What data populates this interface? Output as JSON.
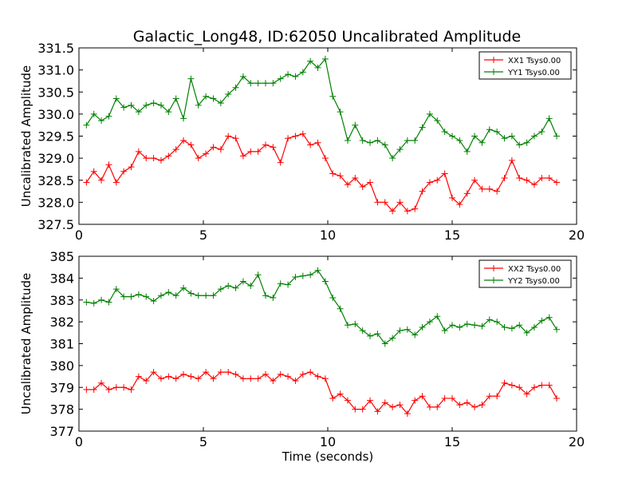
{
  "chart_data": [
    {
      "type": "line",
      "title": "Galactic_Long48, ID:62050 Uncalibrated Amplitude",
      "xlabel": "",
      "ylabel": "Uncalibrated Amplitude",
      "xlim": [
        0,
        20
      ],
      "ylim": [
        327.5,
        331.5
      ],
      "xticks": [
        "0",
        "5",
        "10",
        "15",
        "20"
      ],
      "yticks": [
        "327.5",
        "328.0",
        "328.5",
        "329.0",
        "329.5",
        "330.0",
        "330.5",
        "331.0",
        "331.5"
      ],
      "grid": false,
      "legend_position": "top-right",
      "x": [
        0.3,
        0.6,
        0.9,
        1.2,
        1.5,
        1.8,
        2.1,
        2.4,
        2.7,
        3.0,
        3.3,
        3.6,
        3.9,
        4.2,
        4.5,
        4.8,
        5.1,
        5.4,
        5.7,
        6.0,
        6.3,
        6.6,
        6.9,
        7.2,
        7.5,
        7.8,
        8.1,
        8.4,
        8.7,
        9.0,
        9.3,
        9.6,
        9.9,
        10.2,
        10.5,
        10.8,
        11.1,
        11.4,
        11.7,
        12.0,
        12.3,
        12.6,
        12.9,
        13.2,
        13.5,
        13.8,
        14.1,
        14.4,
        14.7,
        15.0,
        15.3,
        15.6,
        15.9,
        16.2,
        16.5,
        16.8,
        17.1,
        17.4,
        17.7,
        18.0,
        18.3,
        18.6,
        18.9,
        19.2
      ],
      "series": [
        {
          "name": "XX1 Tsys0.00",
          "color": "#ff0000",
          "values": [
            328.45,
            328.7,
            328.5,
            328.85,
            328.45,
            328.7,
            328.8,
            329.15,
            329.0,
            329.0,
            328.95,
            329.05,
            329.2,
            329.4,
            329.3,
            329.0,
            329.1,
            329.25,
            329.2,
            329.5,
            329.45,
            329.05,
            329.15,
            329.15,
            329.3,
            329.25,
            328.9,
            329.45,
            329.5,
            329.55,
            329.3,
            329.35,
            329.0,
            328.65,
            328.6,
            328.4,
            328.55,
            328.35,
            328.45,
            328.0,
            328.0,
            327.8,
            328.0,
            327.8,
            327.85,
            328.25,
            328.45,
            328.5,
            328.65,
            328.1,
            327.95,
            328.2,
            328.5,
            328.3,
            328.3,
            328.25,
            328.55,
            328.95,
            328.55,
            328.5,
            328.4,
            328.55,
            328.55,
            328.45
          ]
        },
        {
          "name": "YY1 Tsys0.00",
          "color": "#008000",
          "values": [
            329.75,
            330.0,
            329.85,
            329.95,
            330.35,
            330.15,
            330.2,
            330.05,
            330.2,
            330.25,
            330.2,
            330.05,
            330.35,
            329.9,
            330.8,
            330.2,
            330.4,
            330.35,
            330.25,
            330.45,
            330.6,
            330.85,
            330.7,
            330.7,
            330.7,
            330.7,
            330.8,
            330.9,
            330.85,
            330.95,
            331.2,
            331.05,
            331.25,
            330.4,
            330.05,
            329.4,
            329.75,
            329.4,
            329.35,
            329.4,
            329.3,
            329.0,
            329.2,
            329.4,
            329.4,
            329.7,
            330.0,
            329.85,
            329.6,
            329.5,
            329.4,
            329.15,
            329.5,
            329.35,
            329.65,
            329.6,
            329.45,
            329.5,
            329.3,
            329.35,
            329.5,
            329.6,
            329.9,
            329.5
          ]
        }
      ]
    },
    {
      "type": "line",
      "title": "",
      "xlabel": "Time (seconds)",
      "ylabel": "Uncalibrated Amplitude",
      "xlim": [
        0,
        20
      ],
      "ylim": [
        377,
        385
      ],
      "xticks": [
        "0",
        "5",
        "10",
        "15",
        "20"
      ],
      "yticks": [
        "377",
        "378",
        "379",
        "380",
        "381",
        "382",
        "383",
        "384",
        "385"
      ],
      "grid": false,
      "legend_position": "top-right",
      "x": [
        0.3,
        0.6,
        0.9,
        1.2,
        1.5,
        1.8,
        2.1,
        2.4,
        2.7,
        3.0,
        3.3,
        3.6,
        3.9,
        4.2,
        4.5,
        4.8,
        5.1,
        5.4,
        5.7,
        6.0,
        6.3,
        6.6,
        6.9,
        7.2,
        7.5,
        7.8,
        8.1,
        8.4,
        8.7,
        9.0,
        9.3,
        9.6,
        9.9,
        10.2,
        10.5,
        10.8,
        11.1,
        11.4,
        11.7,
        12.0,
        12.3,
        12.6,
        12.9,
        13.2,
        13.5,
        13.8,
        14.1,
        14.4,
        14.7,
        15.0,
        15.3,
        15.6,
        15.9,
        16.2,
        16.5,
        16.8,
        17.1,
        17.4,
        17.7,
        18.0,
        18.3,
        18.6,
        18.9,
        19.2
      ],
      "series": [
        {
          "name": "XX2 Tsys0.00",
          "color": "#ff0000",
          "values": [
            378.9,
            378.9,
            379.2,
            378.9,
            379.0,
            379.0,
            378.9,
            379.5,
            379.3,
            379.7,
            379.4,
            379.5,
            379.4,
            379.6,
            379.5,
            379.4,
            379.7,
            379.4,
            379.7,
            379.7,
            379.6,
            379.4,
            379.4,
            379.4,
            379.6,
            379.3,
            379.6,
            379.5,
            379.3,
            379.6,
            379.7,
            379.5,
            379.4,
            378.5,
            378.7,
            378.4,
            378.0,
            378.0,
            378.4,
            377.9,
            378.3,
            378.1,
            378.2,
            377.8,
            378.4,
            378.6,
            378.1,
            378.1,
            378.5,
            378.5,
            378.2,
            378.3,
            378.1,
            378.2,
            378.6,
            378.6,
            379.2,
            379.1,
            379.0,
            378.7,
            379.0,
            379.1,
            379.1,
            378.5
          ]
        },
        {
          "name": "YY2 Tsys0.00",
          "color": "#008000",
          "values": [
            382.9,
            382.85,
            383.0,
            382.9,
            383.5,
            383.15,
            383.15,
            383.25,
            383.15,
            382.95,
            383.2,
            383.35,
            383.2,
            383.55,
            383.3,
            383.2,
            383.2,
            383.2,
            383.5,
            383.65,
            383.55,
            383.85,
            383.65,
            384.15,
            383.2,
            383.1,
            383.75,
            383.7,
            384.05,
            384.1,
            384.15,
            384.35,
            383.85,
            383.1,
            382.6,
            381.85,
            381.9,
            381.6,
            381.35,
            381.45,
            381.0,
            381.25,
            381.6,
            381.65,
            381.4,
            381.75,
            382.0,
            382.25,
            381.6,
            381.85,
            381.75,
            381.9,
            381.85,
            381.8,
            382.1,
            382.0,
            381.75,
            381.7,
            381.85,
            381.5,
            381.75,
            382.05,
            382.2,
            381.65
          ]
        }
      ]
    }
  ]
}
